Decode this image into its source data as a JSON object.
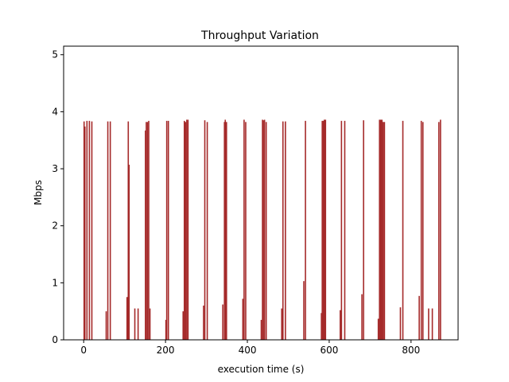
{
  "chart_data": {
    "type": "bar",
    "title": "Throughput Variation",
    "xlabel": "execution time (s)",
    "ylabel": "Mbps",
    "xlim": [
      -49,
      915
    ],
    "ylim": [
      0,
      5.15
    ],
    "xticks": [
      0,
      200,
      400,
      600,
      800
    ],
    "yticks": [
      0,
      1,
      2,
      3,
      4,
      5
    ],
    "grid": false,
    "bar_color": "#a52a2a",
    "bar_width_s": 2.2,
    "points": [
      {
        "x": 1,
        "y": 3.83
      },
      {
        "x": 3,
        "y": 3.74
      },
      {
        "x": 8,
        "y": 3.84
      },
      {
        "x": 14,
        "y": 3.84
      },
      {
        "x": 20,
        "y": 3.83
      },
      {
        "x": 55,
        "y": 0.5
      },
      {
        "x": 59,
        "y": 3.83
      },
      {
        "x": 65,
        "y": 3.83
      },
      {
        "x": 106,
        "y": 0.75
      },
      {
        "x": 109,
        "y": 3.83
      },
      {
        "x": 111,
        "y": 3.07
      },
      {
        "x": 125,
        "y": 0.55
      },
      {
        "x": 133,
        "y": 0.55
      },
      {
        "x": 151,
        "y": 3.67
      },
      {
        "x": 153,
        "y": 3.82
      },
      {
        "x": 156,
        "y": 3.82
      },
      {
        "x": 159,
        "y": 3.84
      },
      {
        "x": 162,
        "y": 0.55
      },
      {
        "x": 201,
        "y": 0.35
      },
      {
        "x": 203,
        "y": 3.84
      },
      {
        "x": 207,
        "y": 3.84
      },
      {
        "x": 243,
        "y": 0.5
      },
      {
        "x": 246,
        "y": 3.84
      },
      {
        "x": 249,
        "y": 3.82
      },
      {
        "x": 252,
        "y": 3.86
      },
      {
        "x": 255,
        "y": 3.86
      },
      {
        "x": 293,
        "y": 0.6
      },
      {
        "x": 296,
        "y": 3.85
      },
      {
        "x": 302,
        "y": 3.82
      },
      {
        "x": 340,
        "y": 0.62
      },
      {
        "x": 344,
        "y": 3.82
      },
      {
        "x": 346,
        "y": 3.86
      },
      {
        "x": 349,
        "y": 3.82
      },
      {
        "x": 389,
        "y": 0.72
      },
      {
        "x": 392,
        "y": 3.86
      },
      {
        "x": 396,
        "y": 3.82
      },
      {
        "x": 434,
        "y": 0.35
      },
      {
        "x": 437,
        "y": 3.86
      },
      {
        "x": 439,
        "y": 3.85
      },
      {
        "x": 442,
        "y": 3.86
      },
      {
        "x": 446,
        "y": 3.82
      },
      {
        "x": 484,
        "y": 0.55
      },
      {
        "x": 487,
        "y": 3.83
      },
      {
        "x": 493,
        "y": 3.83
      },
      {
        "x": 538,
        "y": 1.03
      },
      {
        "x": 542,
        "y": 3.84
      },
      {
        "x": 581,
        "y": 0.47
      },
      {
        "x": 583,
        "y": 3.84
      },
      {
        "x": 585,
        "y": 3.84
      },
      {
        "x": 588,
        "y": 3.86
      },
      {
        "x": 591,
        "y": 3.86
      },
      {
        "x": 627,
        "y": 0.52
      },
      {
        "x": 630,
        "y": 3.84
      },
      {
        "x": 638,
        "y": 3.84
      },
      {
        "x": 680,
        "y": 0.8
      },
      {
        "x": 684,
        "y": 3.85
      },
      {
        "x": 720,
        "y": 0.37
      },
      {
        "x": 723,
        "y": 3.86
      },
      {
        "x": 726,
        "y": 3.86
      },
      {
        "x": 729,
        "y": 3.86
      },
      {
        "x": 732,
        "y": 3.82
      },
      {
        "x": 735,
        "y": 3.82
      },
      {
        "x": 774,
        "y": 0.57
      },
      {
        "x": 780,
        "y": 3.84
      },
      {
        "x": 820,
        "y": 0.77
      },
      {
        "x": 825,
        "y": 3.84
      },
      {
        "x": 829,
        "y": 3.82
      },
      {
        "x": 843,
        "y": 0.55
      },
      {
        "x": 852,
        "y": 0.55
      },
      {
        "x": 868,
        "y": 3.82
      },
      {
        "x": 872,
        "y": 3.86
      }
    ]
  }
}
